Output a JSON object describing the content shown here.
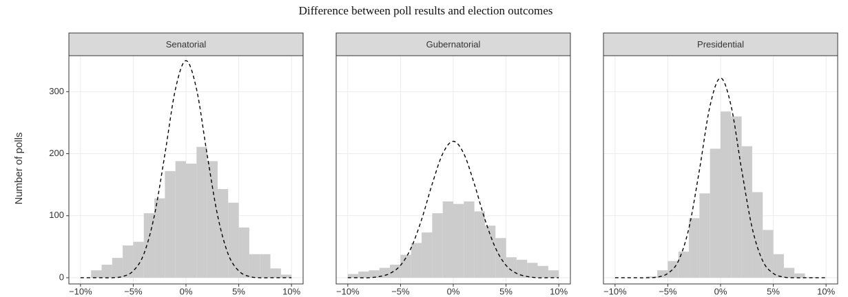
{
  "title": "Difference between poll results and election outcomes",
  "ylabel": "Number of polls",
  "chart_data": [
    {
      "type": "histogram",
      "facet": "Senatorial",
      "bins": [
        -9,
        -8,
        -7,
        -6,
        -5,
        -4,
        -3,
        -2,
        -1,
        0,
        1,
        2,
        3,
        4,
        5,
        6,
        7,
        8,
        9,
        10
      ],
      "values": [
        12,
        21,
        32,
        52,
        58,
        104,
        128,
        172,
        188,
        184,
        211,
        188,
        143,
        121,
        81,
        38,
        38,
        15,
        5
      ],
      "color": "#cccccc",
      "curve": {
        "x": [
          -10,
          -9,
          -8,
          -7,
          -6,
          -5,
          -4,
          -3,
          -2,
          -1,
          0,
          1,
          2,
          3,
          4,
          5,
          6,
          7,
          8,
          9,
          10
        ],
        "values": [
          0,
          0,
          0,
          0,
          2,
          11,
          38,
          100,
          199,
          304,
          350,
          304,
          199,
          100,
          38,
          11,
          2,
          0,
          0,
          0,
          0
        ],
        "color": "#000000"
      },
      "xlim": [
        -11.1,
        11.1
      ],
      "ylim": [
        -10,
        358
      ],
      "xticks": [
        {
          "value": -10,
          "label": "−10%"
        },
        {
          "value": -5,
          "label": "−5%"
        },
        {
          "value": 0,
          "label": "0%"
        },
        {
          "value": 5,
          "label": "5%"
        },
        {
          "value": 10,
          "label": "10%"
        }
      ],
      "yticks": [
        0,
        100,
        200,
        300
      ],
      "show_ytick_labels": true,
      "grid": true
    },
    {
      "type": "histogram",
      "facet": "Gubernatorial",
      "bins": [
        -10,
        -9,
        -8,
        -7,
        -6,
        -5,
        -4,
        -3,
        -2,
        -1,
        0,
        1,
        2,
        3,
        4,
        5,
        6,
        7,
        8,
        9,
        10
      ],
      "values": [
        6,
        10,
        12,
        16,
        21,
        37,
        56,
        73,
        104,
        123,
        119,
        123,
        107,
        84,
        64,
        33,
        29,
        24,
        19,
        12
      ],
      "color": "#cccccc",
      "curve": {
        "x": [
          -10,
          -9,
          -8,
          -7,
          -6,
          -5,
          -4,
          -3,
          -2,
          -1,
          0,
          1,
          2,
          3,
          4,
          5,
          6,
          7,
          8,
          9,
          10
        ],
        "values": [
          0,
          0,
          0,
          2,
          7,
          20,
          48,
          94,
          151,
          200,
          220,
          200,
          151,
          94,
          48,
          20,
          7,
          2,
          0,
          0,
          0
        ],
        "color": "#000000"
      },
      "xlim": [
        -11.1,
        11.1
      ],
      "ylim": [
        -10,
        358
      ],
      "xticks": [
        {
          "value": -10,
          "label": "−10%"
        },
        {
          "value": -5,
          "label": "−5%"
        },
        {
          "value": 0,
          "label": "0%"
        },
        {
          "value": 5,
          "label": "5%"
        },
        {
          "value": 10,
          "label": "10%"
        }
      ],
      "yticks": [
        0,
        100,
        200,
        300
      ],
      "show_ytick_labels": false,
      "grid": true
    },
    {
      "type": "histogram",
      "facet": "Presidential",
      "bins": [
        -7,
        -6,
        -5,
        -4,
        -3,
        -2,
        -1,
        0,
        1,
        2,
        3,
        4,
        5,
        6,
        7,
        8,
        9
      ],
      "values": [
        2,
        12,
        27,
        42,
        96,
        136,
        208,
        268,
        260,
        212,
        138,
        77,
        38,
        16,
        7,
        1
      ],
      "color": "#cccccc",
      "curve": {
        "x": [
          -10,
          -9,
          -8,
          -7,
          -6,
          -5,
          -4,
          -3,
          -2,
          -1,
          0,
          1,
          2,
          3,
          4,
          5,
          6,
          7,
          8,
          9,
          10
        ],
        "values": [
          0,
          0,
          0,
          0,
          1,
          7,
          27,
          80,
          174,
          277,
          322,
          277,
          174,
          80,
          27,
          7,
          1,
          0,
          0,
          0,
          0
        ],
        "color": "#000000"
      },
      "xlim": [
        -11.1,
        11.1
      ],
      "ylim": [
        -10,
        358
      ],
      "xticks": [
        {
          "value": -10,
          "label": "−10%"
        },
        {
          "value": -5,
          "label": "−5%"
        },
        {
          "value": 0,
          "label": "0%"
        },
        {
          "value": 5,
          "label": "5%"
        },
        {
          "value": 10,
          "label": "10%"
        }
      ],
      "yticks": [
        0,
        100,
        200,
        300
      ],
      "show_ytick_labels": false,
      "grid": true
    }
  ]
}
